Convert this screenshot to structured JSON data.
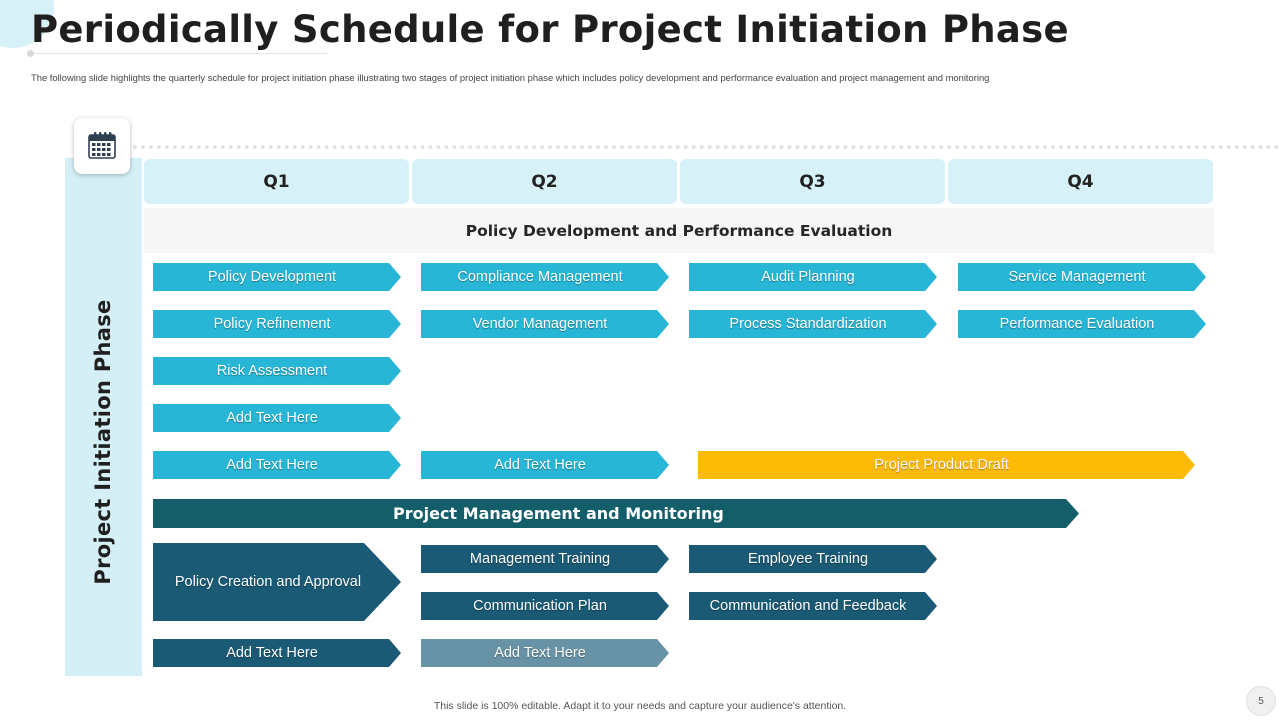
{
  "slide": {
    "title": "Periodically Schedule for Project Initiation Phase",
    "subtitle": "The following slide highlights the quarterly schedule for project initiation phase illustrating two stages of project initiation phase which includes policy development and performance evaluation and project management and monitoring",
    "side_label": "Project Initiation Phase",
    "footer": "This slide is 100% editable. Adapt it to your needs and capture your audience's attention.",
    "page_number": "5",
    "calendar_icon": "calendar-icon"
  },
  "quarters": [
    "Q1",
    "Q2",
    "Q3",
    "Q4"
  ],
  "policy_section": {
    "heading": "Policy Development and Performance Evaluation",
    "q1": [
      "Policy Development",
      "Policy Refinement",
      "Risk Assessment",
      "Add Text Here",
      "Add Text Here"
    ],
    "q2": [
      "Compliance Management",
      "Vendor Management",
      "Add Text Here"
    ],
    "q3": [
      "Audit Planning",
      "Process Standardization"
    ],
    "q4": [
      "Service Management",
      "Performance Evaluation"
    ],
    "product_draft": "Project Product Draft"
  },
  "management_section": {
    "heading": "Project Management and Monitoring",
    "q1_main": "Policy Creation and Approval",
    "q1_extra": "Add Text Here",
    "q2": [
      "Management Training",
      "Communication Plan",
      "Add Text Here"
    ],
    "q3": [
      "Employee Training",
      "Communication and Feedback"
    ]
  },
  "colors": {
    "cyan": "#27b6d5",
    "navy": "#1a5a74",
    "teal": "#145e6a",
    "grey_blue": "#6892a6",
    "yellow": "#fdbb08",
    "light_band": "#d4f0f6"
  }
}
